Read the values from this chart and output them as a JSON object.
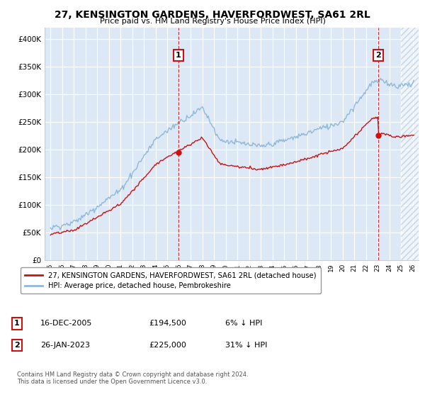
{
  "title": "27, KENSINGTON GARDENS, HAVERFORDWEST, SA61 2RL",
  "subtitle": "Price paid vs. HM Land Registry's House Price Index (HPI)",
  "legend_line1": "27, KENSINGTON GARDENS, HAVERFORDWEST, SA61 2RL (detached house)",
  "legend_line2": "HPI: Average price, detached house, Pembrokeshire",
  "annotations": [
    {
      "num": "1",
      "date": "16-DEC-2005",
      "price": "£194,500",
      "hpi": "6% ↓ HPI"
    },
    {
      "num": "2",
      "date": "26-JAN-2023",
      "price": "£225,000",
      "hpi": "31% ↓ HPI"
    }
  ],
  "footnote": "Contains HM Land Registry data © Crown copyright and database right 2024.\nThis data is licensed under the Open Government Licence v3.0.",
  "color_red": "#cc1111",
  "color_blue": "#90b8d8",
  "ylim_min": 0,
  "ylim_max": 420000,
  "yticks": [
    0,
    50000,
    100000,
    150000,
    200000,
    250000,
    300000,
    350000,
    400000
  ],
  "ytick_labels": [
    "£0",
    "£50K",
    "£100K",
    "£150K",
    "£200K",
    "£250K",
    "£300K",
    "£350K",
    "£400K"
  ],
  "bg_color": "#dce8f5",
  "sale1_year": 2005.958,
  "sale1_price": 194500,
  "sale2_year": 2023.042,
  "sale2_price": 225000,
  "xmin": 1995,
  "xmax": 2026,
  "hatch_start": 2025
}
